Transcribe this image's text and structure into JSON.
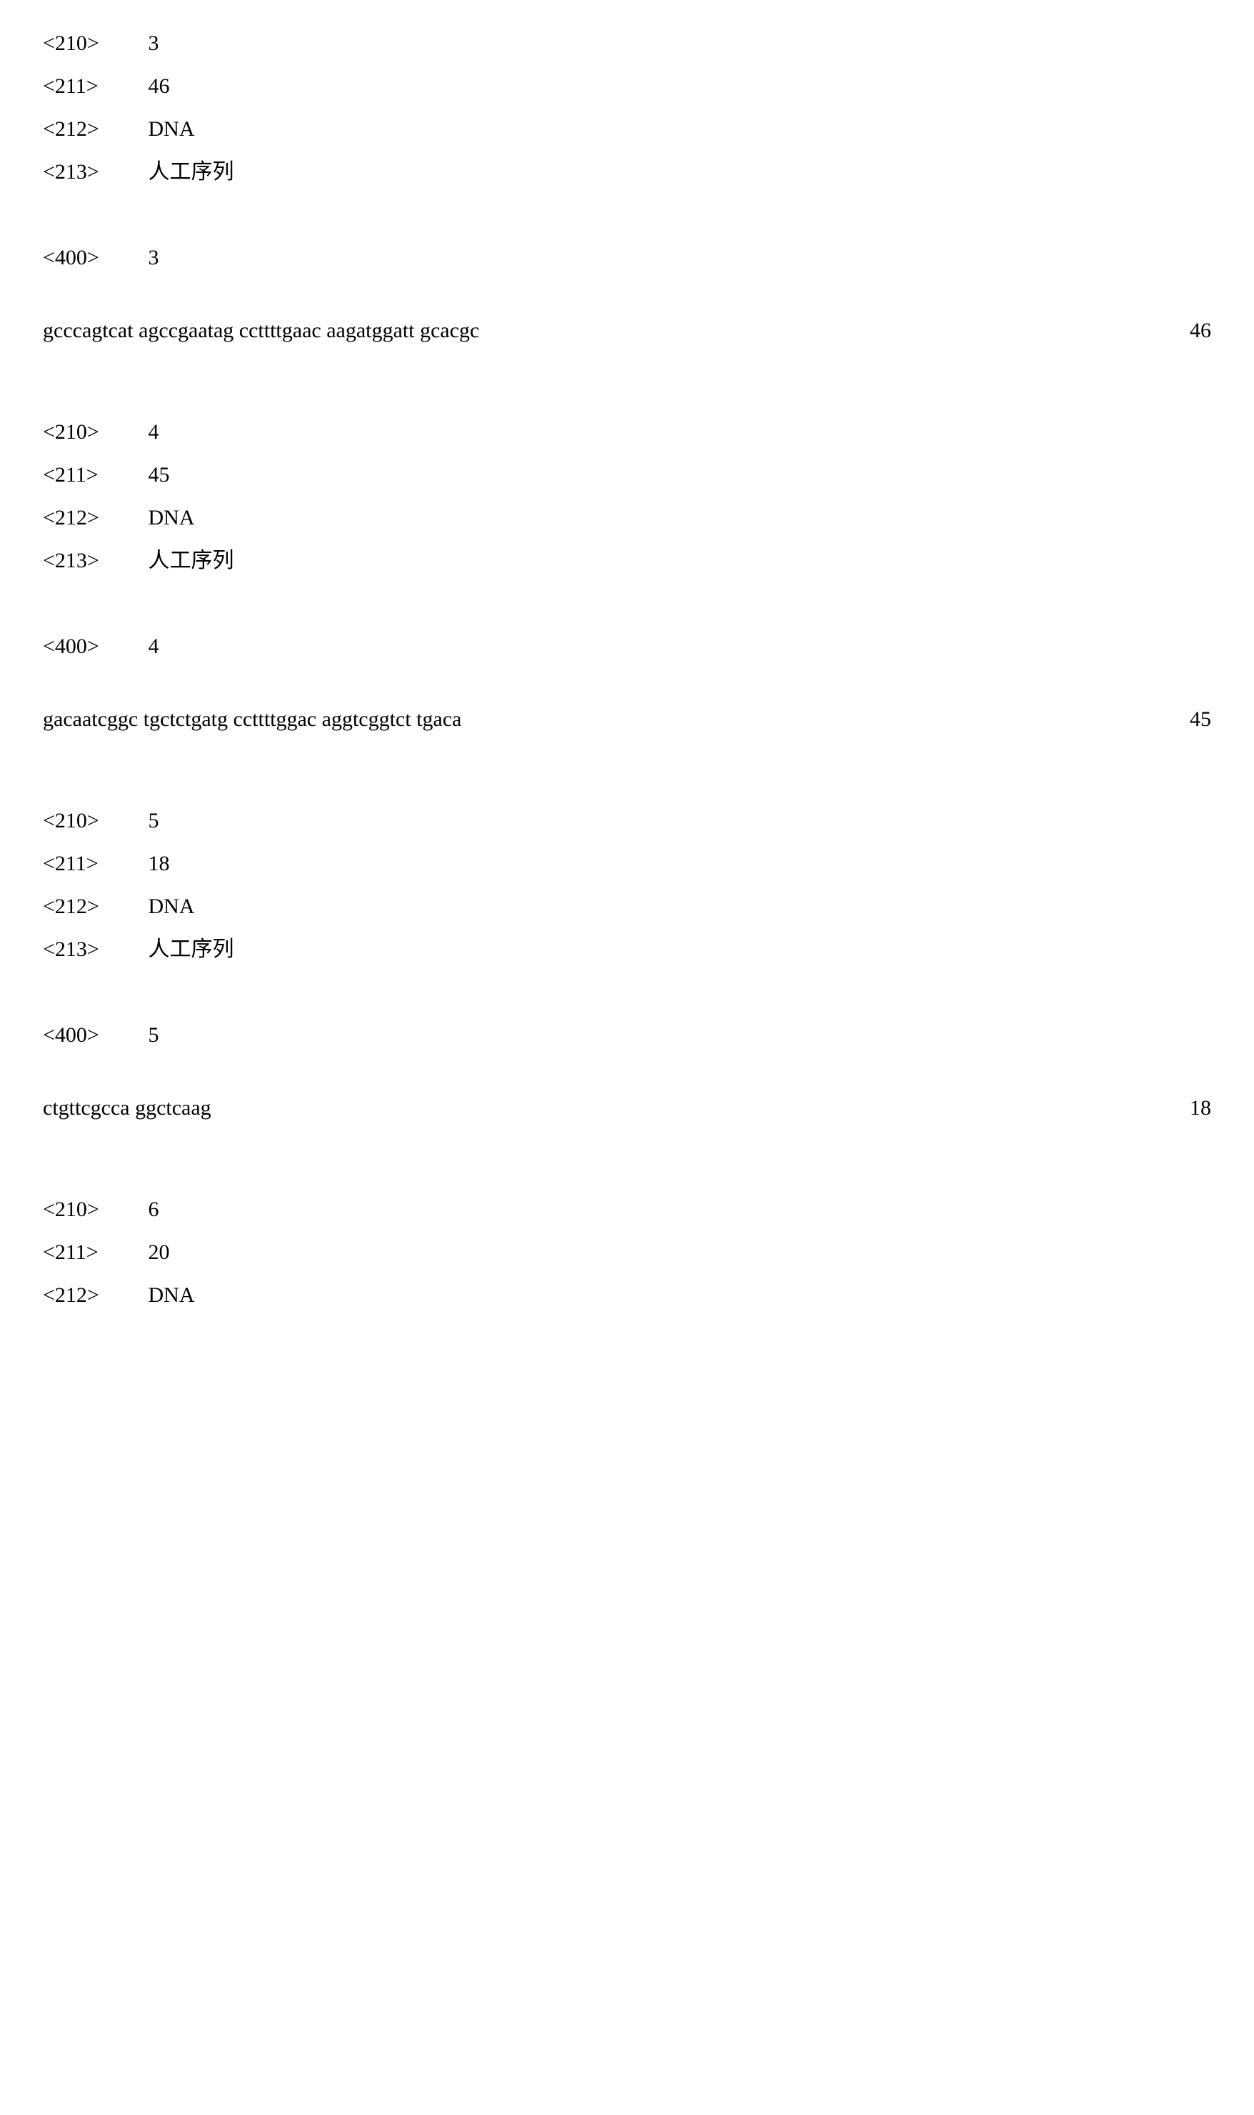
{
  "entries": [
    {
      "h210_tag": "<210>",
      "h210_val": "3",
      "h211_tag": "<211>",
      "h211_val": "46",
      "h212_tag": "<212>",
      "h212_val": "DNA",
      "h213_tag": "<213>",
      "h213_val": "人工序列",
      "h400_tag": "<400>",
      "h400_val": "3",
      "sequence": "gcccagtcat agccgaatag ccttttgaac aagatggatt gcacgc",
      "seq_len": "46"
    },
    {
      "h210_tag": "<210>",
      "h210_val": "4",
      "h211_tag": "<211>",
      "h211_val": "45",
      "h212_tag": "<212>",
      "h212_val": "DNA",
      "h213_tag": "<213>",
      "h213_val": "人工序列",
      "h400_tag": "<400>",
      "h400_val": "4",
      "sequence": "gacaatcggc tgctctgatg ccttttggac aggtcggtct tgaca",
      "seq_len": "45"
    },
    {
      "h210_tag": "<210>",
      "h210_val": "5",
      "h211_tag": "<211>",
      "h211_val": "18",
      "h212_tag": "<212>",
      "h212_val": "DNA",
      "h213_tag": "<213>",
      "h213_val": "人工序列",
      "h400_tag": "<400>",
      "h400_val": "5",
      "sequence": "ctgttcgcca ggctcaag",
      "seq_len": "18"
    }
  ],
  "trailing": {
    "h210_tag": "<210>",
    "h210_val": "6",
    "h211_tag": "<211>",
    "h211_val": "20",
    "h212_tag": "<212>",
    "h212_val": "DNA"
  }
}
